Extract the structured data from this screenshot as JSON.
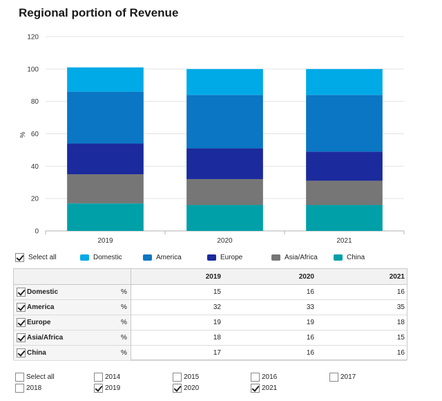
{
  "title": "Regional portion of Revenue",
  "chart_data": {
    "type": "bar",
    "stacked": true,
    "categories": [
      "2019",
      "2020",
      "2021"
    ],
    "series": [
      {
        "name": "China",
        "color": "#00a0a8",
        "values": [
          17,
          16,
          16
        ]
      },
      {
        "name": "Asia/Africa",
        "color": "#767676",
        "values": [
          18,
          16,
          15
        ]
      },
      {
        "name": "Europe",
        "color": "#1b2a9c",
        "values": [
          19,
          19,
          18
        ]
      },
      {
        "name": "America",
        "color": "#0a76c4",
        "values": [
          32,
          33,
          35
        ]
      },
      {
        "name": "Domestic",
        "color": "#00aae6",
        "values": [
          15,
          16,
          16
        ]
      }
    ],
    "ylabel": "%",
    "xlabel": "",
    "ylim": [
      0,
      120
    ],
    "yticks": [
      0,
      20,
      40,
      60,
      80,
      100,
      120
    ],
    "grid": true
  },
  "legend": {
    "select_all": "Select all",
    "items": [
      {
        "label": "Domestic",
        "color": "#00aae6"
      },
      {
        "label": "America",
        "color": "#0a76c4"
      },
      {
        "label": "Europe",
        "color": "#1b2a9c"
      },
      {
        "label": "Asia/Africa",
        "color": "#767676"
      },
      {
        "label": "China",
        "color": "#00a0a8"
      }
    ]
  },
  "table": {
    "columns": [
      "2019",
      "2020",
      "2021"
    ],
    "rows": [
      {
        "name": "Domestic",
        "unit": "%",
        "values": [
          "15",
          "16",
          "16"
        ]
      },
      {
        "name": "America",
        "unit": "%",
        "values": [
          "32",
          "33",
          "35"
        ]
      },
      {
        "name": "Europe",
        "unit": "%",
        "values": [
          "19",
          "19",
          "18"
        ]
      },
      {
        "name": "Asia/Africa",
        "unit": "%",
        "values": [
          "18",
          "16",
          "15"
        ]
      },
      {
        "name": "China",
        "unit": "%",
        "values": [
          "17",
          "16",
          "16"
        ]
      }
    ]
  },
  "year_filter": {
    "select_all": "Select all",
    "items": [
      {
        "label": "2014",
        "checked": false
      },
      {
        "label": "2015",
        "checked": false
      },
      {
        "label": "2016",
        "checked": false
      },
      {
        "label": "2017",
        "checked": false
      },
      {
        "label": "2018",
        "checked": false
      },
      {
        "label": "2019",
        "checked": true
      },
      {
        "label": "2020",
        "checked": true
      },
      {
        "label": "2021",
        "checked": true
      }
    ]
  }
}
